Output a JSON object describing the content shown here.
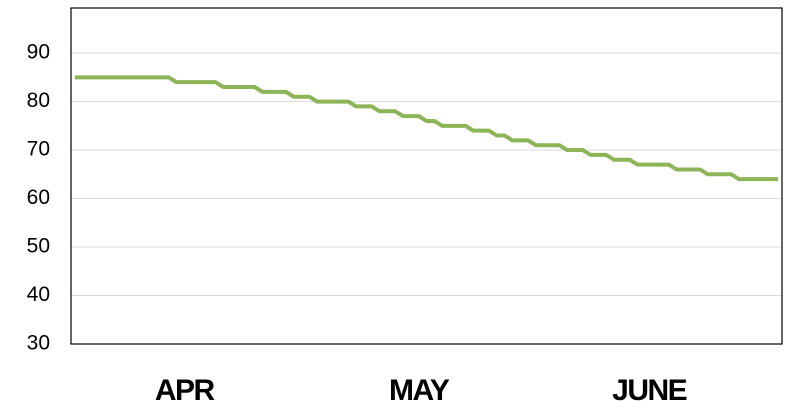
{
  "chart_data": {
    "type": "line",
    "x": [
      0,
      1,
      2,
      3,
      4,
      5,
      6,
      7,
      8,
      9,
      10,
      11,
      12,
      13,
      14,
      15,
      16,
      17,
      18,
      19,
      20,
      21,
      22,
      23,
      24,
      25,
      26,
      27,
      28,
      29,
      30,
      31,
      32,
      33,
      34,
      35,
      36,
      37,
      38,
      39,
      40,
      41,
      42,
      43,
      44,
      45,
      46,
      47,
      48,
      49,
      50,
      51,
      52,
      53,
      54,
      55,
      56,
      57,
      58,
      59,
      60,
      61,
      62,
      63,
      64,
      65,
      66,
      67,
      68,
      69,
      70,
      71,
      72,
      73,
      74,
      75,
      76,
      77,
      78,
      79,
      80,
      81,
      82,
      83,
      84,
      85,
      86,
      87,
      88,
      89,
      90
    ],
    "series": [
      {
        "color": "#8db457",
        "values": [
          85,
          85,
          85,
          85,
          85,
          85,
          85,
          85,
          85,
          85,
          85,
          85,
          85,
          84,
          84,
          84,
          84,
          84,
          84,
          83,
          83,
          83,
          83,
          83,
          82,
          82,
          82,
          82,
          81,
          81,
          81,
          80,
          80,
          80,
          80,
          80,
          79,
          79,
          79,
          78,
          78,
          78,
          77,
          77,
          77,
          76,
          76,
          75,
          75,
          75,
          75,
          74,
          74,
          74,
          73,
          73,
          72,
          72,
          72,
          71,
          71,
          71,
          71,
          70,
          70,
          70,
          69,
          69,
          69,
          68,
          68,
          68,
          67,
          67,
          67,
          67,
          67,
          66,
          66,
          66,
          66,
          65,
          65,
          65,
          65,
          64,
          64,
          64,
          64,
          64,
          64
        ]
      }
    ],
    "xlim": [
      -0.5,
      90.5
    ],
    "xticks": [
      {
        "value": 14,
        "label": "APR"
      },
      {
        "value": 44,
        "label": "MAY"
      },
      {
        "value": 73.5,
        "label": "JUNE"
      }
    ],
    "ylim": [
      30,
      99.3
    ],
    "yticks": [
      30,
      40,
      50,
      60,
      70,
      80,
      90
    ],
    "grid": true
  }
}
